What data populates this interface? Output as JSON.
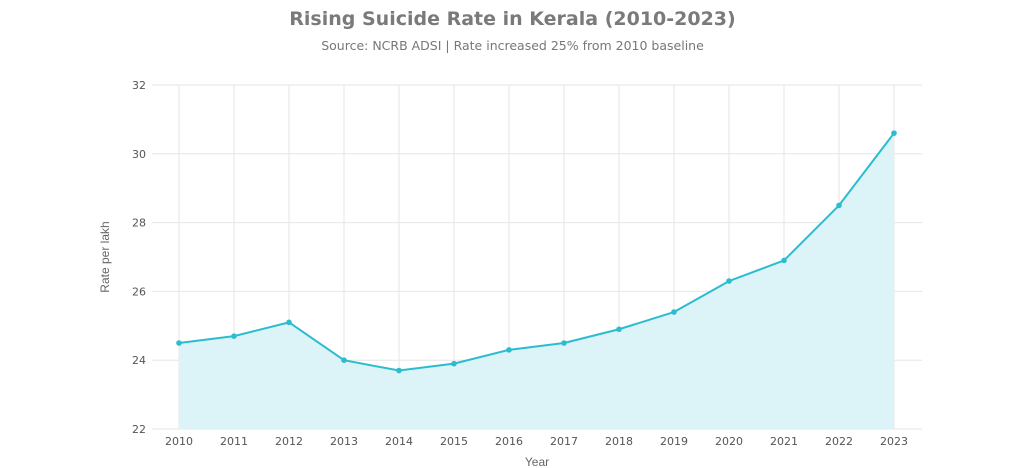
{
  "chart_data": {
    "type": "area",
    "title": "Rising Suicide Rate in Kerala (2010-2023)",
    "subtitle": "Source: NCRB ADSI | Rate increased 25% from 2010 baseline",
    "xlabel": "Year",
    "ylabel": "Rate per lakh",
    "x": [
      "2010",
      "2011",
      "2012",
      "2013",
      "2014",
      "2015",
      "2016",
      "2017",
      "2018",
      "2019",
      "2020",
      "2021",
      "2022",
      "2023"
    ],
    "values": [
      24.5,
      24.7,
      25.1,
      24.0,
      23.7,
      23.9,
      24.3,
      24.5,
      24.9,
      25.4,
      26.3,
      26.9,
      28.5,
      30.6
    ],
    "ylim": [
      22,
      32
    ],
    "yticks": [
      "22",
      "24",
      "26",
      "28",
      "30",
      "32"
    ],
    "grid": true,
    "legend": "none",
    "colors": {
      "line": "#2bbccf",
      "fill": "#dcf3f8",
      "grid": "#e6e6e6",
      "title": "#7a7a7a"
    }
  }
}
